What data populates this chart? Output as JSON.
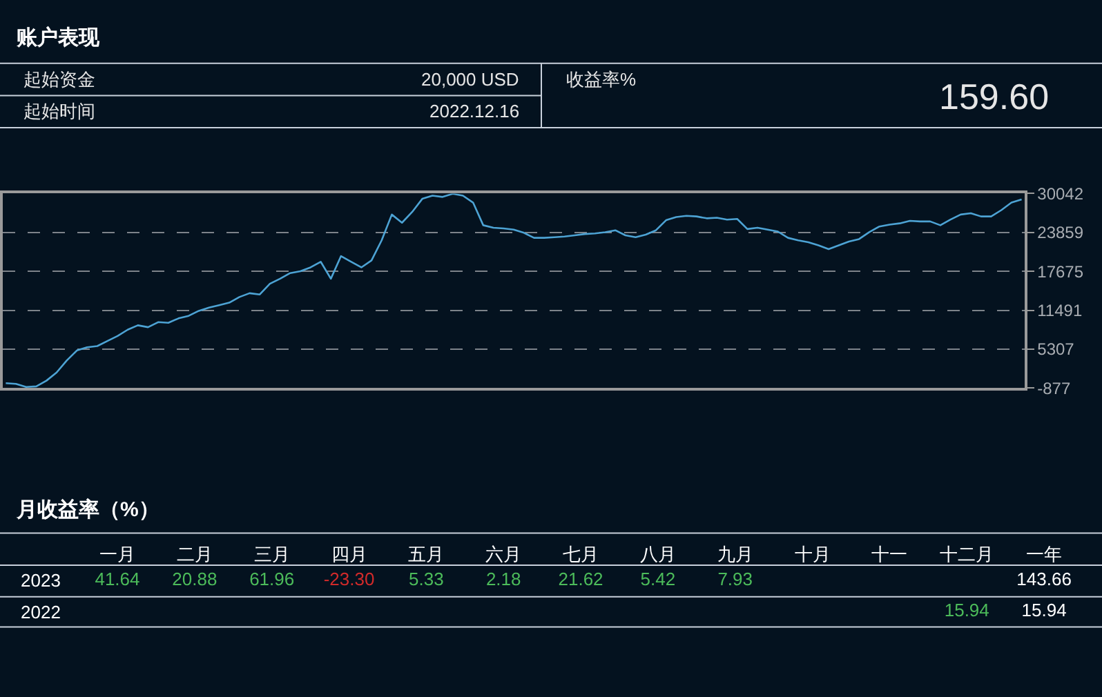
{
  "chart_data": [
    {
      "type": "other",
      "title": "账户表现",
      "annotations": [
        "起始资金",
        "20,000 USD",
        "起始时间",
        "2022.12.16",
        "收益率%",
        "159.60"
      ]
    },
    {
      "type": "line",
      "categories": [
        null,
        null,
        null,
        null,
        null,
        null,
        null,
        null,
        null,
        null,
        null,
        null,
        null,
        null,
        null,
        null,
        null,
        null,
        null,
        null,
        null,
        null,
        null,
        null,
        null,
        null,
        null,
        null,
        null,
        null,
        null,
        null,
        null,
        null,
        null,
        null,
        null,
        null,
        null,
        null,
        null,
        null,
        null,
        null,
        null,
        null,
        null,
        null,
        null,
        null,
        null,
        null,
        null,
        null,
        null,
        null,
        null,
        null,
        null,
        null,
        null,
        null,
        null,
        null,
        null,
        null,
        null,
        null,
        null,
        null,
        null,
        null,
        null,
        null,
        null,
        null,
        null,
        null,
        null,
        null,
        null,
        null,
        null,
        null,
        null,
        null,
        null,
        null,
        null,
        null,
        null,
        null,
        null,
        null,
        null,
        null,
        null,
        null,
        null,
        null,
        null
      ],
      "series": [
        {
          "color": "#4da3d4",
          "values": [
            -100,
            -200,
            -700,
            -600,
            300,
            1600,
            3500,
            5100,
            5600,
            5800,
            6600,
            7400,
            8400,
            9100,
            8800,
            9600,
            9500,
            10200,
            10600,
            11400,
            11900,
            12300,
            12700,
            13600,
            14200,
            14000,
            15700,
            16500,
            17400,
            17700,
            18300,
            19200,
            16500,
            20100,
            19200,
            18300,
            19400,
            22600,
            26700,
            25400,
            27100,
            29200,
            29700,
            29500,
            30000,
            29700,
            28600,
            25000,
            24600,
            24500,
            24300,
            23800,
            23000,
            23000,
            23100,
            23200,
            23400,
            23600,
            23700,
            23900,
            24200,
            23400,
            23100,
            23500,
            24200,
            25800,
            26300,
            26500,
            26400,
            26100,
            26200,
            25900,
            26000,
            24400,
            24600,
            24300,
            24000,
            23000,
            22600,
            22300,
            21800,
            21200,
            21800,
            22400,
            22800,
            23900,
            24800,
            25100,
            25300,
            25700,
            25600,
            25600,
            25000,
            25900,
            26700,
            26900,
            26400,
            26400,
            27400,
            28600,
            29100
          ]
        }
      ],
      "ylim": [
        -877,
        30042
      ],
      "yticks": [
        -877,
        5307,
        11491,
        17675,
        23859,
        30042
      ],
      "grid": "y",
      "tick_labels": "y"
    },
    {
      "type": "other",
      "title": "月收益率（%）",
      "categories": [
        "一月",
        "二月",
        "三月",
        "四月",
        "五月",
        "六月",
        "七月",
        "八月",
        "九月",
        "十月",
        "十一",
        "十二月",
        "一年"
      ],
      "y_categories": [
        "2023",
        "2022"
      ],
      "cell_labels": [
        [
          "41.64",
          "20.88",
          "61.96",
          "-23.30",
          "5.33",
          "2.18",
          "21.62",
          "5.42",
          "7.93",
          null,
          null,
          null,
          "143.66"
        ],
        [
          null,
          null,
          null,
          null,
          null,
          null,
          null,
          null,
          null,
          null,
          null,
          "15.94",
          "15.94"
        ]
      ],
      "colors": [
        [
          "#4cbb5a",
          "#4cbb5a",
          "#4cbb5a",
          "#d12a2a",
          "#4cbb5a",
          "#4cbb5a",
          "#4cbb5a",
          "#4cbb5a",
          "#4cbb5a",
          null,
          null,
          null,
          "#ffffff"
        ],
        [
          null,
          null,
          null,
          null,
          null,
          null,
          null,
          null,
          null,
          null,
          null,
          "#4cbb5a",
          "#ffffff"
        ]
      ]
    }
  ]
}
